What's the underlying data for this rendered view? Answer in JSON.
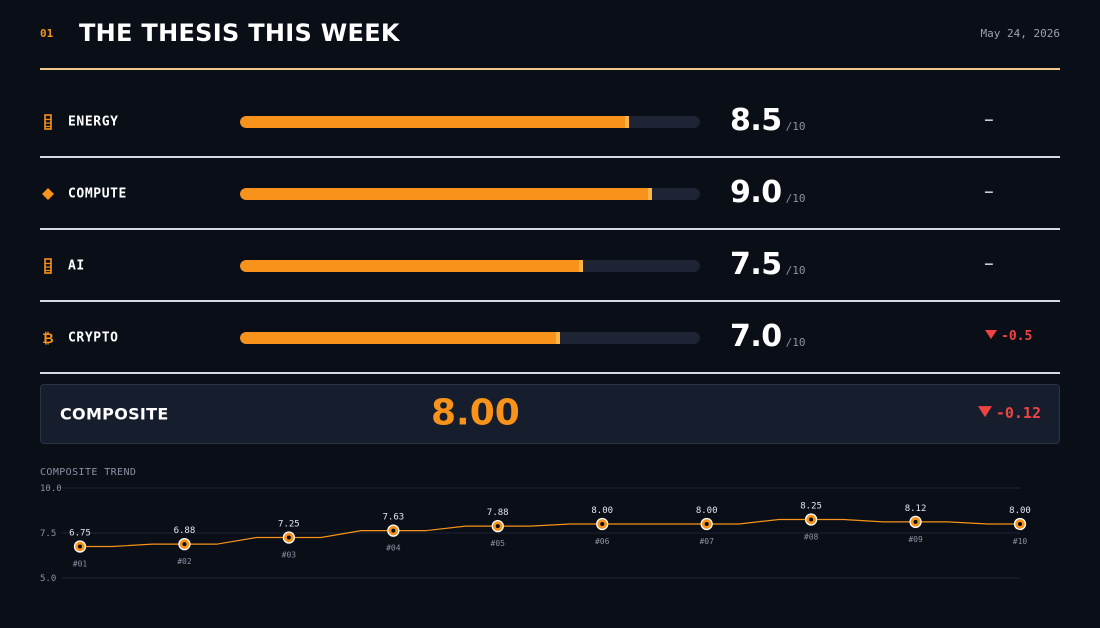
{
  "header": {
    "section_num": "01",
    "title": "THE THESIS THIS WEEK",
    "date": "May 24, 2026"
  },
  "rows": [
    {
      "label": "ENERGY",
      "icon": "energy-bar-icon",
      "score": "8.5",
      "score_value": 8.5,
      "denom": "/10",
      "delta": "–",
      "delta_kind": "neutral"
    },
    {
      "label": "COMPUTE",
      "icon": "diamond-icon",
      "score": "9.0",
      "score_value": 9.0,
      "denom": "/10",
      "delta": "–",
      "delta_kind": "neutral"
    },
    {
      "label": "AI",
      "icon": "ai-bar-icon",
      "score": "7.5",
      "score_value": 7.5,
      "denom": "/10",
      "delta": "–",
      "delta_kind": "neutral"
    },
    {
      "label": "CRYPTO",
      "icon": "bitcoin-icon",
      "score": "7.0",
      "score_value": 7.0,
      "denom": "/10",
      "delta": "-0.5",
      "delta_kind": "negative"
    }
  ],
  "composite": {
    "label": "COMPOSITE",
    "value": "8.00",
    "delta": "-0.12"
  },
  "colors": {
    "accent": "#f7931a",
    "negative": "#ef4444",
    "background": "#0a0e17"
  },
  "chart_data": {
    "type": "line",
    "title": "COMPOSITE TREND",
    "ylim": [
      5.0,
      10.0
    ],
    "y_ticks": [
      "10.0",
      "7.5",
      "5.0"
    ],
    "x": [
      "#01",
      "#02",
      "#03",
      "#04",
      "#05",
      "#06",
      "#07",
      "#08",
      "#09",
      "#10"
    ],
    "series": [
      {
        "values": [
          6.75,
          6.88,
          7.25,
          7.63,
          7.88,
          8.0,
          8.0,
          8.25,
          8.12,
          8.0
        ],
        "labels": [
          "6.75",
          "6.88",
          "7.25",
          "7.63",
          "7.88",
          "8.00",
          "8.00",
          "8.25",
          "8.12",
          "8.00"
        ]
      }
    ],
    "grid": true
  }
}
